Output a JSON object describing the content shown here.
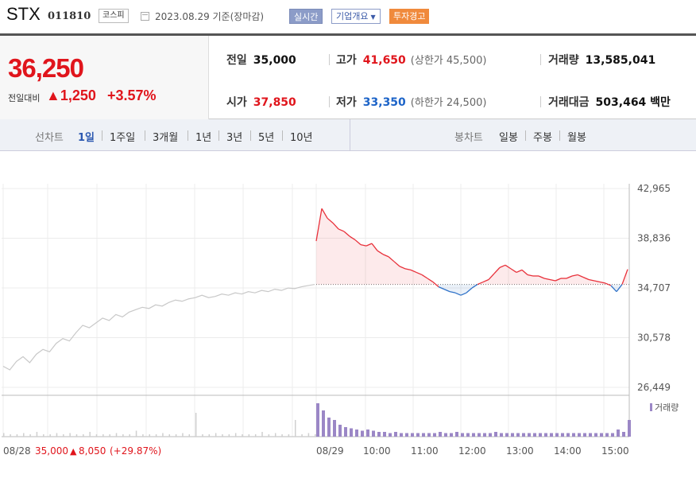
{
  "header": {
    "name": "STX",
    "code": "011810",
    "market": "코스피",
    "date_text": "2023.08.29 기준(장마감)",
    "realtime_label": "실시간",
    "company_label": "기업개요",
    "warning_label": "투자경고"
  },
  "quote": {
    "price": "36,250",
    "change_label": "전일대비",
    "change": "1,250",
    "change_pct": "+3.57%",
    "prev_label": "전일",
    "prev": "35,000",
    "high_label": "고가",
    "high": "41,650",
    "upper_limit": "(상한가 45,500)",
    "volume_label": "거래량",
    "volume": "13,585,041",
    "open_label": "시가",
    "open": "37,850",
    "low_label": "저가",
    "low": "33,350",
    "lower_limit": "(하한가 24,500)",
    "amount_label": "거래대금",
    "amount": "503,464 백만",
    "colors": {
      "up": "#e0151c",
      "down": "#1d64c8"
    }
  },
  "tabs": {
    "line_label": "선차트",
    "line_periods": [
      "1일",
      "1주일",
      "3개월",
      "1년",
      "3년",
      "5년",
      "10년"
    ],
    "line_active": "1일",
    "candle_label": "봉차트",
    "candle_periods": [
      "일봉",
      "주봉",
      "월봉"
    ]
  },
  "chart_data": {
    "type": "line",
    "title": "",
    "y_ticks": [
      "42,965",
      "38,836",
      "34,707",
      "30,578",
      "26,449"
    ],
    "ylim": [
      26449,
      42965
    ],
    "baseline": 35000,
    "x_labels": [
      "08/29",
      "10:00",
      "11:00",
      "12:00",
      "13:00",
      "14:00",
      "15:00"
    ],
    "prev_day_label": "08/28",
    "prev_day_summary": {
      "close": "35,000",
      "change": "8,050",
      "pct": "(+29.87%)"
    },
    "volume_label": "거래량",
    "colors": {
      "up_line": "#e8303a",
      "down_line": "#2f72c8",
      "prev_line": "#c8c8c8",
      "volume": "#9b87c6"
    },
    "prev_day": [
      28200,
      27900,
      28600,
      29000,
      28500,
      29200,
      29600,
      29400,
      30100,
      30500,
      30300,
      31000,
      31600,
      31400,
      31800,
      32200,
      32000,
      32500,
      32300,
      32700,
      32900,
      33100,
      33000,
      33300,
      33200,
      33500,
      33700,
      33600,
      33800,
      33900,
      34100,
      33900,
      34000,
      34200,
      34100,
      34300,
      34200,
      34400,
      34300,
      34500,
      34400,
      34600,
      34500,
      34700,
      34650,
      34800,
      34900,
      35000
    ],
    "today": [
      38600,
      41300,
      40500,
      40100,
      39600,
      39400,
      39000,
      38700,
      38300,
      38200,
      38400,
      37800,
      37500,
      37300,
      36900,
      36500,
      36300,
      36200,
      36000,
      35800,
      35500,
      35200,
      34800,
      34600,
      34400,
      34300,
      34100,
      34300,
      34700,
      35000,
      35200,
      35400,
      35900,
      36400,
      36600,
      36300,
      36000,
      36200,
      35800,
      35700,
      35700,
      35500,
      35400,
      35300,
      35500,
      35500,
      35700,
      35800,
      35600,
      35400,
      35300,
      35200,
      35100,
      34900,
      34400,
      35000,
      36250
    ],
    "prev_day_volume": [
      3,
      2,
      2,
      3,
      2,
      4,
      2,
      2,
      3,
      2,
      3,
      2,
      2,
      4,
      2,
      2,
      2,
      3,
      2,
      2,
      5,
      2,
      2,
      2,
      3,
      2,
      2,
      3,
      2,
      20,
      2,
      2,
      3,
      2,
      2,
      3,
      2,
      2,
      2,
      4,
      2,
      3,
      2,
      2,
      14,
      2,
      3,
      2
    ],
    "today_volume": [
      28,
      22,
      16,
      14,
      10,
      8,
      7,
      6,
      5,
      6,
      5,
      4,
      4,
      3,
      4,
      3,
      3,
      3,
      3,
      3,
      3,
      3,
      4,
      3,
      3,
      4,
      3,
      3,
      3,
      3,
      3,
      3,
      4,
      3,
      3,
      3,
      3,
      3,
      3,
      3,
      3,
      3,
      3,
      3,
      3,
      3,
      3,
      3,
      3,
      3,
      3,
      3,
      3,
      3,
      6,
      4,
      14
    ]
  }
}
